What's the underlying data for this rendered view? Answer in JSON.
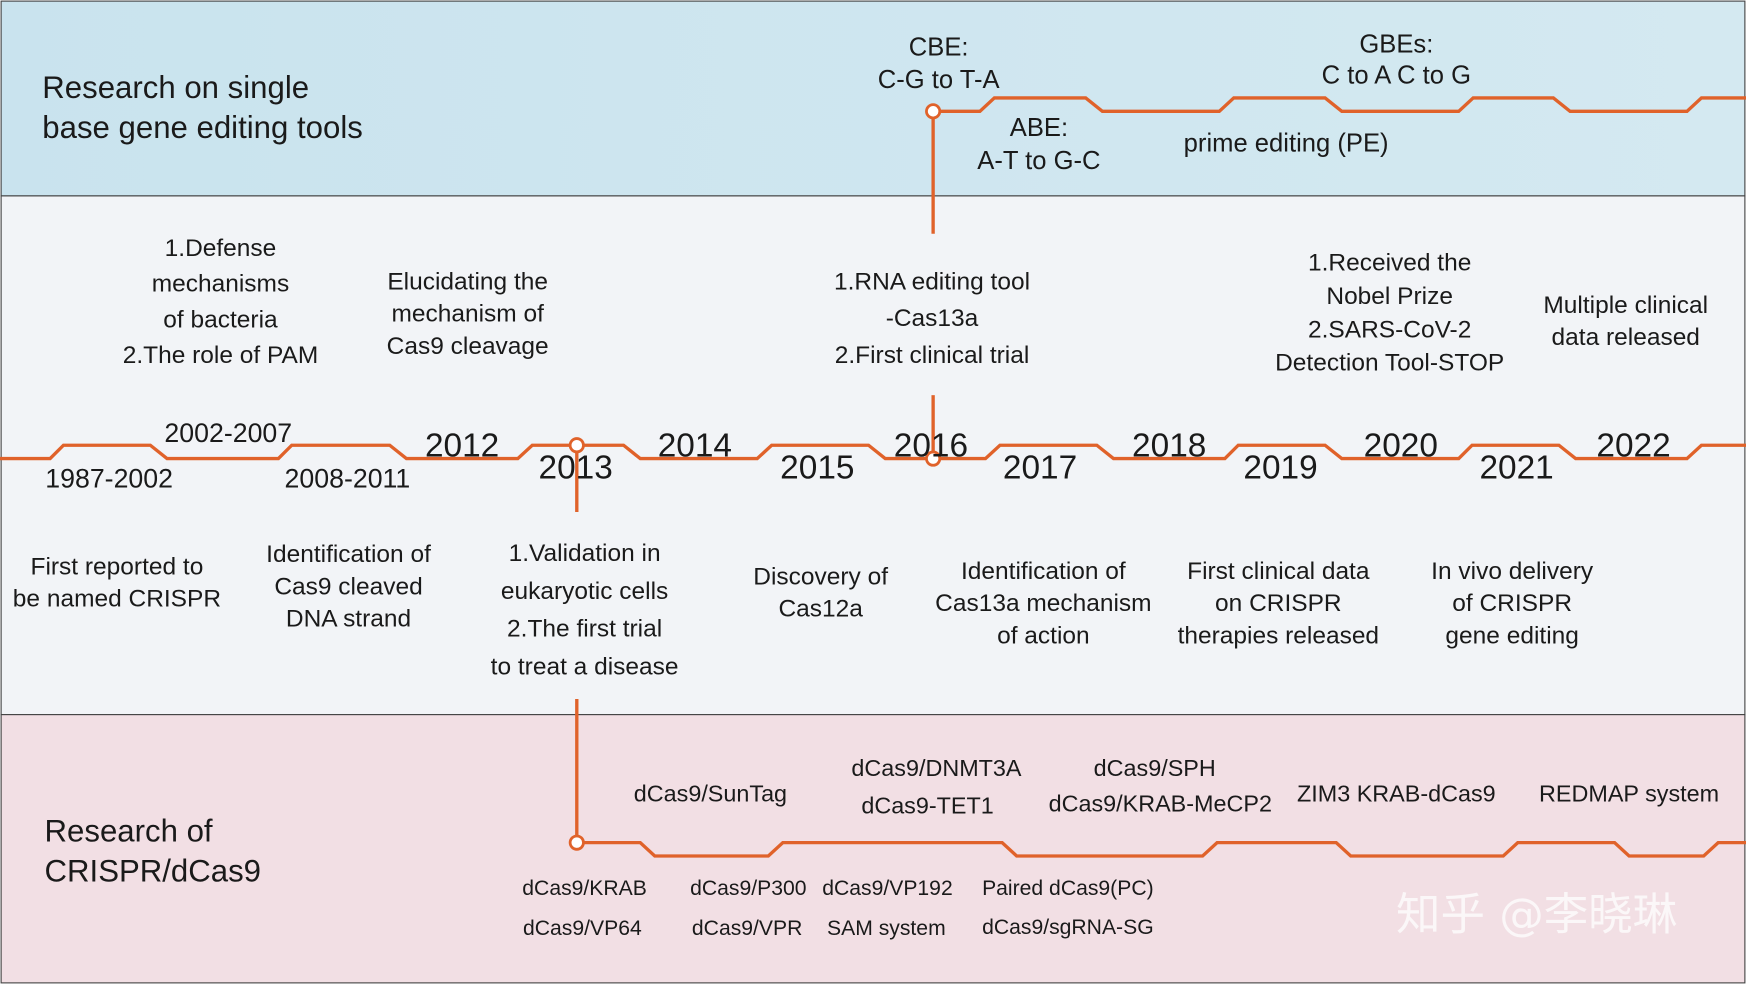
{
  "top_section": {
    "title_lines": [
      "Research on single",
      "base gene editing tools"
    ],
    "events": [
      {
        "lines": [
          "CBE:",
          "C-G to T-A"
        ]
      },
      {
        "lines": [
          "ABE:",
          "A-T to G-C"
        ]
      },
      {
        "lines": [
          "prime editing (PE)"
        ]
      },
      {
        "lines": [
          "GBEs:",
          "C to A  C to G"
        ]
      }
    ]
  },
  "timeline": {
    "periods": [
      "1987-2002",
      "2002-2007",
      "2008-2011",
      "2012",
      "2013",
      "2014",
      "2015",
      "2016",
      "2017",
      "2018",
      "2019",
      "2020",
      "2021",
      "2022"
    ],
    "events_above": [
      {
        "lines": [
          "1.Defense",
          "mechanisms",
          "of bacteria",
          "2.The role of PAM"
        ]
      },
      {
        "lines": [
          "Elucidating the",
          "mechanism of",
          "Cas9 cleavage"
        ]
      },
      {
        "lines": [
          "1.RNA editing tool",
          "-Cas13a",
          "2.First clinical trial"
        ]
      },
      {
        "lines": [
          "1.Received the",
          "Nobel Prize",
          "2.SARS-CoV-2",
          "Detection Tool-STOP"
        ]
      },
      {
        "lines": [
          "Multiple clinical",
          "data released"
        ]
      }
    ],
    "events_below": [
      {
        "lines": [
          "First reported to",
          "be named CRISPR"
        ]
      },
      {
        "lines": [
          "Identification of",
          "Cas9 cleaved",
          "DNA strand"
        ]
      },
      {
        "lines": [
          "1.Validation in",
          "eukaryotic cells",
          "2.The first trial",
          "to treat a disease"
        ]
      },
      {
        "lines": [
          "Discovery of",
          "Cas12a"
        ]
      },
      {
        "lines": [
          "Identification of",
          "Cas13a mechanism",
          "of action"
        ]
      },
      {
        "lines": [
          "First clinical data",
          "on CRISPR",
          "therapies released"
        ]
      },
      {
        "lines": [
          "In vivo delivery",
          "of CRISPR",
          "gene editing"
        ]
      }
    ]
  },
  "bottom_section": {
    "title_lines": [
      "Research of",
      "CRISPR/dCas9"
    ],
    "tools_above": [
      "dCas9/SunTag",
      "dCas9/DNMT3A",
      "dCas9-TET1",
      "dCas9/SPH",
      "dCas9/KRAB-MeCP2",
      "ZIM3 KRAB-dCas9",
      "REDMAP system"
    ],
    "tools_below": [
      "dCas9/KRAB",
      "dCas9/VP64",
      "dCas9/P300",
      "dCas9/VPR",
      "dCas9/VP192",
      "SAM system",
      "Paired dCas9(PC)",
      "dCas9/sgRNA-SG"
    ]
  },
  "watermark": "知乎 @李晓琳"
}
